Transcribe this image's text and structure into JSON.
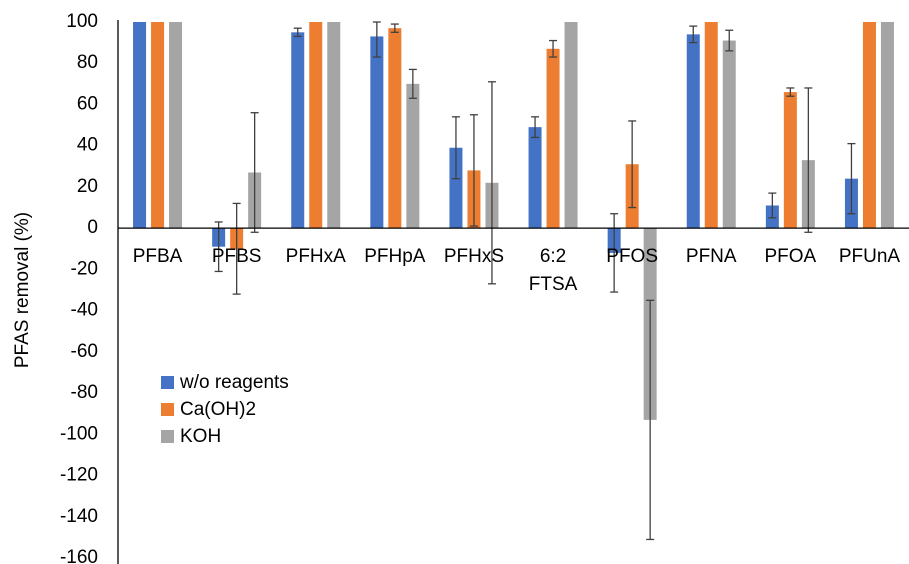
{
  "chart_data": {
    "type": "bar",
    "title": "",
    "xlabel": "",
    "ylabel": "PFAS removal (%)",
    "ylim": [
      -160,
      100
    ],
    "yticks": [
      100,
      80,
      60,
      40,
      20,
      0,
      -20,
      -40,
      -60,
      -80,
      -100,
      -120,
      -140,
      -160
    ],
    "categories": [
      "PFBA",
      "PFBS",
      "PFHxA",
      "PFHpA",
      "PFHxS",
      "6:2 FTSA",
      "PFOS",
      "PFNA",
      "PFOA",
      "PFUnA"
    ],
    "series": [
      {
        "name": "w/o reagents",
        "color": "#4472C4",
        "values": [
          100,
          -9,
          95,
          93,
          39,
          49,
          -12,
          94,
          11,
          24
        ],
        "errors": [
          0,
          12,
          2,
          10,
          15,
          5,
          19,
          4,
          6,
          17
        ]
      },
      {
        "name": "Ca(OH)2",
        "color": "#ED7D31",
        "values": [
          100,
          -10,
          100,
          97,
          28,
          87,
          31,
          100,
          66,
          100
        ],
        "errors": [
          0,
          22,
          0,
          2,
          27,
          4,
          21,
          0,
          2,
          0
        ]
      },
      {
        "name": "KOH",
        "color": "#A5A5A5",
        "values": [
          100,
          27,
          100,
          70,
          22,
          100,
          -93,
          91,
          33,
          100
        ],
        "errors": [
          0,
          29,
          0,
          7,
          49,
          0,
          58,
          5,
          35,
          0
        ]
      }
    ],
    "legend_position": "lower-left",
    "grid": false
  }
}
